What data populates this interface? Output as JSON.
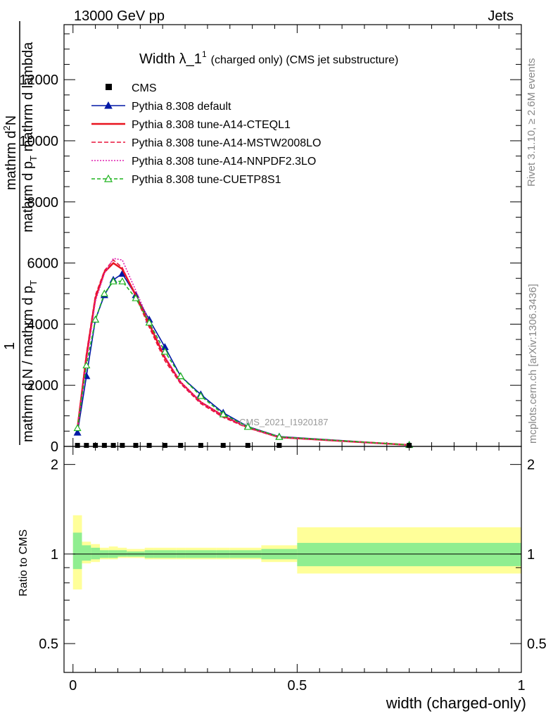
{
  "header": {
    "left": "13000 GeV pp",
    "right": "Jets"
  },
  "side_labels": {
    "rivet": "Rivet 3.1.10, ≥ 2.6M events",
    "mcplots": "mcplots.cern.ch [arXiv:1306.3436]"
  },
  "chart_data": {
    "type": "line",
    "title": "Width λ_1",
    "title_superscript": "1",
    "title_suffix": "(charged only) (CMS jet substructure)",
    "watermark": "CMS_2021_I1920187",
    "xlabel": "width (charged-only)",
    "ylabel_main": {
      "numerator": "1",
      "line1": "mathrm d N / mathrm d p",
      "sub1": "T",
      "line2": "mathrm d",
      "sup2": "2",
      "line2b": "N",
      "line3": "mathrm d p",
      "sub3": "T",
      "line3b": " mathrm d lambda"
    },
    "ylabel_ratio": "Ratio to CMS",
    "xlim": [
      -0.02,
      1.0
    ],
    "ylim_main": [
      0,
      13800
    ],
    "ylim_ratio": [
      0.4,
      2.3
    ],
    "ratio_log": true,
    "x_ticks": [
      "0",
      "0.5",
      "1"
    ],
    "x_tick_values": [
      0,
      0.5,
      1
    ],
    "y_ticks_main": [
      "0",
      "2000",
      "4000",
      "6000",
      "8000",
      "10000",
      "12000"
    ],
    "y_tick_values_main": [
      0,
      2000,
      4000,
      6000,
      8000,
      10000,
      12000
    ],
    "y_ticks_ratio": [
      "0.5",
      "1",
      "2"
    ],
    "y_tick_values_ratio": [
      0.5,
      1,
      2
    ],
    "x": [
      0.01,
      0.03,
      0.05,
      0.07,
      0.09,
      0.11,
      0.14,
      0.17,
      0.205,
      0.24,
      0.285,
      0.335,
      0.39,
      0.46,
      0.75
    ],
    "cms": {
      "name": "CMS",
      "values": [
        10,
        10,
        10,
        10,
        10,
        10,
        10,
        10,
        10,
        10,
        10,
        10,
        10,
        10,
        10
      ],
      "color": "#000000"
    },
    "series": [
      {
        "name": "Pythia 8.308 default",
        "color": "#0019a6",
        "dash": "",
        "marker": "triangle-filled",
        "values": [
          450,
          2300,
          4150,
          4950,
          5450,
          5650,
          4950,
          4150,
          3250,
          2300,
          1700,
          1100,
          650,
          320,
          50
        ]
      },
      {
        "name": "Pythia 8.308 tune-A14-CTEQL1",
        "color": "#e8141e",
        "dash": "",
        "marker": "none",
        "values": [
          600,
          2950,
          4850,
          5700,
          6000,
          5800,
          4950,
          4000,
          2900,
          2100,
          1450,
          1000,
          620,
          300,
          45
        ]
      },
      {
        "name": "Pythia 8.308 tune-A14-MSTW2008LO",
        "color": "#e8143c",
        "dash": "6,3",
        "marker": "none",
        "values": [
          650,
          3050,
          4950,
          5750,
          6100,
          5850,
          4900,
          3900,
          2800,
          2050,
          1400,
          950,
          600,
          290,
          45
        ]
      },
      {
        "name": "Pythia 8.308 tune-A14-NNPDF2.3LO",
        "color": "#e020b0",
        "dash": "2,2",
        "marker": "none",
        "values": [
          550,
          2750,
          4750,
          5650,
          6150,
          6100,
          5100,
          4100,
          2950,
          2100,
          1450,
          1000,
          620,
          300,
          45
        ]
      },
      {
        "name": "Pythia 8.308 tune-CUETP8S1",
        "color": "#1eb41e",
        "dash": "5,3",
        "marker": "triangle-open",
        "values": [
          600,
          2650,
          4150,
          5000,
          5400,
          5400,
          4850,
          4050,
          3100,
          2300,
          1650,
          1050,
          640,
          310,
          48
        ]
      }
    ],
    "ratio_bands": {
      "x_edges": [
        0.0,
        0.02,
        0.04,
        0.06,
        0.08,
        0.1,
        0.12,
        0.16,
        0.18,
        0.23,
        0.25,
        0.32,
        0.35,
        0.42,
        0.5,
        1.0
      ],
      "inner": [
        [
          0.89,
          1.18
        ],
        [
          0.95,
          1.07
        ],
        [
          0.96,
          1.05
        ],
        [
          0.97,
          1.03
        ],
        [
          0.97,
          1.03
        ],
        [
          0.98,
          1.03
        ],
        [
          0.98,
          1.02
        ],
        [
          0.97,
          1.03
        ],
        [
          0.97,
          1.03
        ],
        [
          0.97,
          1.03
        ],
        [
          0.97,
          1.03
        ],
        [
          0.97,
          1.03
        ],
        [
          0.97,
          1.03
        ],
        [
          0.96,
          1.04
        ],
        [
          0.91,
          1.09
        ]
      ],
      "outer": [
        [
          0.76,
          1.35
        ],
        [
          0.93,
          1.1
        ],
        [
          0.94,
          1.08
        ],
        [
          0.96,
          1.05
        ],
        [
          0.96,
          1.06
        ],
        [
          0.97,
          1.05
        ],
        [
          0.97,
          1.04
        ],
        [
          0.96,
          1.05
        ],
        [
          0.96,
          1.05
        ],
        [
          0.96,
          1.05
        ],
        [
          0.96,
          1.05
        ],
        [
          0.96,
          1.05
        ],
        [
          0.96,
          1.05
        ],
        [
          0.94,
          1.07
        ],
        [
          0.86,
          1.23
        ]
      ],
      "inner_color": "#90ee90",
      "outer_color": "#ffff99"
    }
  }
}
